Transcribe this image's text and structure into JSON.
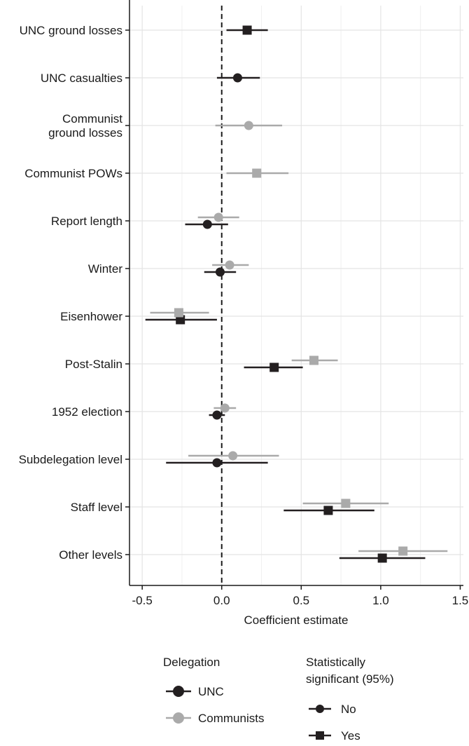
{
  "chart_data": {
    "type": "scatter",
    "subtype": "coefficient-plot",
    "xlabel": "Coefficient estimate",
    "xlim": [
      -0.58,
      1.52
    ],
    "xticks": [
      -0.5,
      0.0,
      0.5,
      1.0,
      1.5
    ],
    "xtick_labels": [
      "-0.5",
      "0.0",
      "0.5",
      "1.0",
      "1.5"
    ],
    "reference_line": {
      "x": 0,
      "style": "dashed"
    },
    "grid": true,
    "categories": [
      "UNC ground losses",
      "UNC casualties",
      "Communist\nground losses",
      "Communist POWs",
      "Report length",
      "Winter",
      "Eisenhower",
      "Post-Stalin",
      "1952 election",
      "Subdelegation level",
      "Staff level",
      "Other levels"
    ],
    "series": [
      {
        "name": "UNC",
        "color": "#231f20",
        "points": [
          {
            "category": "UNC ground losses",
            "estimate": 0.16,
            "low": 0.03,
            "high": 0.29,
            "significant": true
          },
          {
            "category": "UNC casualties",
            "estimate": 0.1,
            "low": -0.03,
            "high": 0.24,
            "significant": false
          },
          {
            "category": "Report length",
            "estimate": -0.09,
            "low": -0.23,
            "high": 0.04,
            "significant": false
          },
          {
            "category": "Winter",
            "estimate": -0.01,
            "low": -0.11,
            "high": 0.09,
            "significant": false
          },
          {
            "category": "Eisenhower",
            "estimate": -0.26,
            "low": -0.48,
            "high": -0.03,
            "significant": true
          },
          {
            "category": "Post-Stalin",
            "estimate": 0.33,
            "low": 0.14,
            "high": 0.51,
            "significant": true
          },
          {
            "category": "1952 election",
            "estimate": -0.03,
            "low": -0.08,
            "high": 0.02,
            "significant": false
          },
          {
            "category": "Subdelegation level",
            "estimate": -0.03,
            "low": -0.35,
            "high": 0.29,
            "significant": false
          },
          {
            "category": "Staff level",
            "estimate": 0.67,
            "low": 0.39,
            "high": 0.96,
            "significant": true
          },
          {
            "category": "Other levels",
            "estimate": 1.01,
            "low": 0.74,
            "high": 1.28,
            "significant": true
          }
        ]
      },
      {
        "name": "Communists",
        "color": "#aaaaaa",
        "points": [
          {
            "category": "Communist\nground losses",
            "estimate": 0.17,
            "low": -0.04,
            "high": 0.38,
            "significant": false
          },
          {
            "category": "Communist POWs",
            "estimate": 0.22,
            "low": 0.03,
            "high": 0.42,
            "significant": true
          },
          {
            "category": "Report length",
            "estimate": -0.02,
            "low": -0.15,
            "high": 0.11,
            "significant": false
          },
          {
            "category": "Winter",
            "estimate": 0.05,
            "low": -0.06,
            "high": 0.17,
            "significant": false
          },
          {
            "category": "Eisenhower",
            "estimate": -0.27,
            "low": -0.45,
            "high": -0.08,
            "significant": true
          },
          {
            "category": "Post-Stalin",
            "estimate": 0.58,
            "low": 0.44,
            "high": 0.73,
            "significant": true
          },
          {
            "category": "1952 election",
            "estimate": 0.02,
            "low": -0.05,
            "high": 0.09,
            "significant": false
          },
          {
            "category": "Subdelegation level",
            "estimate": 0.07,
            "low": -0.21,
            "high": 0.36,
            "significant": false
          },
          {
            "category": "Staff level",
            "estimate": 0.78,
            "low": 0.51,
            "high": 1.05,
            "significant": true
          },
          {
            "category": "Other levels",
            "estimate": 1.14,
            "low": 0.86,
            "high": 1.42,
            "significant": true
          }
        ]
      }
    ],
    "legends": [
      {
        "title": "Delegation",
        "entries": [
          {
            "label": "UNC",
            "color": "#231f20",
            "shape": "circle"
          },
          {
            "label": "Communists",
            "color": "#aaaaaa",
            "shape": "circle"
          }
        ]
      },
      {
        "title": "Statistically\nsignificant (95%)",
        "entries": [
          {
            "label": "No",
            "shape": "circle"
          },
          {
            "label": "Yes",
            "shape": "square"
          }
        ]
      }
    ],
    "legend_position": "bottom"
  }
}
